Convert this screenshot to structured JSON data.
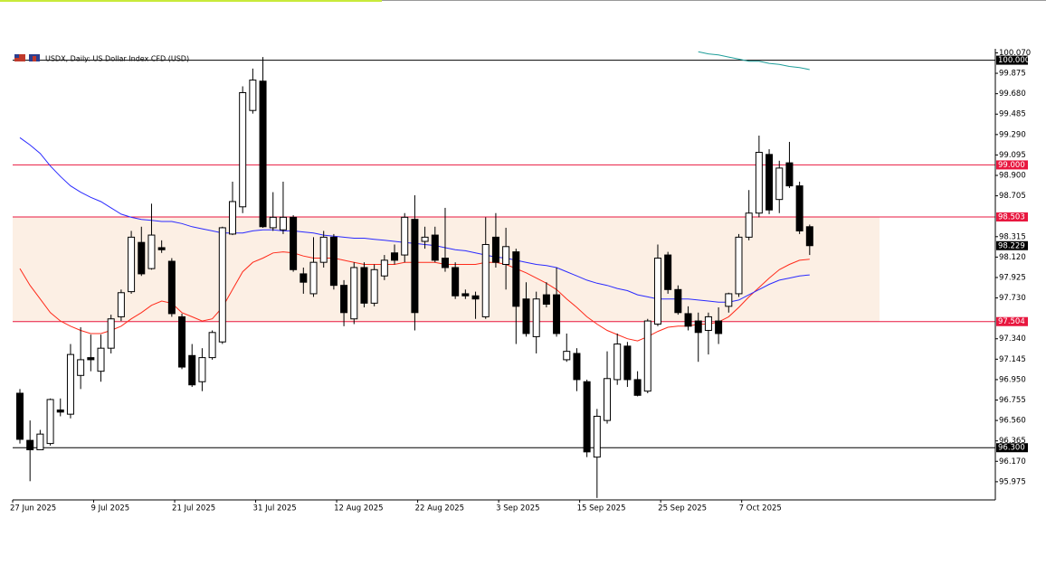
{
  "chart_data": {
    "type": "candlestick",
    "title": "USDX, Daily: US Dollar Index CFD (USD)",
    "categories": [
      "27 Jun 2025",
      null,
      null,
      null,
      null,
      null,
      null,
      null,
      "9 Jul 2025",
      null,
      null,
      null,
      null,
      null,
      null,
      null,
      "21 Jul 2025",
      null,
      null,
      null,
      null,
      null,
      null,
      null,
      "31 Jul 2025",
      null,
      null,
      null,
      null,
      null,
      null,
      null,
      "12 Aug 2025",
      null,
      null,
      null,
      null,
      null,
      null,
      null,
      "22 Aug 2025",
      null,
      null,
      null,
      null,
      null,
      null,
      null,
      "3 Sep 2025",
      null,
      null,
      null,
      null,
      null,
      null,
      null,
      "15 Sep 2025",
      null,
      null,
      null,
      null,
      null,
      null,
      null,
      "25 Sep 2025",
      null,
      null,
      null,
      null,
      null,
      null,
      null,
      "7 Oct 2025",
      null,
      null,
      null,
      null,
      null,
      null
    ],
    "open": [
      96.82,
      96.37,
      96.28,
      96.34,
      96.66,
      96.62,
      96.99,
      97.16,
      97.03,
      97.25,
      97.55,
      97.79,
      98.26,
      98.01,
      98.21,
      98.08,
      97.55,
      97.18,
      96.93,
      97.16,
      97.31,
      98.34,
      98.6,
      99.52,
      99.8,
      98.4,
      98.38,
      98.5,
      97.96,
      97.77,
      98.07,
      98.31,
      97.85,
      97.53,
      98.02,
      97.68,
      97.94,
      98.16,
      98.14,
      98.48,
      98.27,
      98.33,
      98.11,
      98.02,
      97.77,
      97.75,
      97.55,
      98.31,
      98.05,
      98.17,
      97.72,
      97.36,
      97.76,
      97.76,
      97.14,
      97.2,
      96.93,
      96.21,
      96.56,
      96.95,
      97.27,
      96.95,
      96.84,
      97.48,
      98.14,
      97.81,
      97.58,
      97.51,
      97.42,
      97.51,
      97.65,
      97.77,
      98.31,
      98.54,
      99.1,
      98.67,
      99.02,
      98.8,
      98.41
    ],
    "high": [
      96.86,
      96.56,
      96.47,
      96.77,
      96.77,
      97.29,
      97.45,
      97.38,
      97.38,
      97.57,
      97.81,
      98.37,
      98.41,
      98.63,
      98.28,
      98.11,
      97.58,
      97.29,
      97.25,
      97.42,
      98.41,
      98.84,
      99.75,
      99.92,
      100.03,
      98.74,
      98.84,
      98.52,
      98.02,
      98.31,
      98.37,
      98.34,
      97.9,
      98.07,
      98.07,
      98.05,
      98.14,
      98.24,
      98.54,
      98.71,
      98.41,
      98.41,
      98.59,
      98.07,
      97.81,
      97.79,
      98.5,
      98.54,
      98.4,
      98.2,
      97.88,
      97.79,
      97.88,
      98.02,
      97.39,
      97.25,
      96.95,
      96.67,
      97.22,
      97.39,
      97.31,
      97.03,
      97.53,
      98.24,
      98.17,
      97.85,
      97.65,
      97.59,
      97.59,
      97.64,
      97.78,
      98.34,
      98.76,
      99.28,
      99.15,
      99.04,
      99.22,
      98.84,
      98.43
    ],
    "low": [
      96.34,
      95.98,
      96.28,
      96.32,
      96.6,
      96.58,
      96.86,
      97.03,
      96.93,
      97.2,
      97.51,
      97.77,
      97.94,
      98.0,
      98.16,
      97.55,
      97.05,
      96.88,
      96.84,
      97.14,
      97.29,
      98.33,
      98.54,
      99.49,
      98.4,
      98.37,
      98.34,
      97.98,
      97.77,
      97.74,
      98.02,
      97.81,
      97.46,
      97.48,
      97.64,
      97.65,
      97.9,
      98.05,
      98.07,
      97.42,
      98.2,
      98.07,
      97.98,
      97.72,
      97.72,
      97.53,
      97.53,
      98.02,
      97.81,
      97.29,
      97.36,
      97.2,
      97.64,
      97.36,
      97.12,
      96.84,
      96.21,
      95.82,
      96.53,
      96.9,
      96.88,
      96.79,
      96.82,
      97.46,
      97.77,
      97.57,
      97.42,
      97.12,
      97.19,
      97.29,
      97.59,
      97.74,
      98.28,
      98.5,
      98.53,
      98.54,
      98.78,
      98.34,
      98.14
    ],
    "close": [
      96.38,
      96.28,
      96.43,
      96.76,
      96.64,
      97.19,
      97.14,
      97.14,
      97.25,
      97.53,
      97.78,
      98.31,
      97.96,
      98.33,
      98.19,
      97.58,
      97.07,
      96.9,
      97.16,
      97.4,
      98.4,
      98.65,
      99.69,
      99.81,
      98.41,
      98.5,
      98.5,
      98.0,
      97.88,
      98.07,
      98.31,
      97.85,
      97.59,
      98.02,
      97.68,
      98.0,
      98.09,
      98.09,
      98.5,
      97.59,
      98.31,
      98.09,
      98.02,
      97.75,
      97.75,
      97.72,
      98.24,
      98.07,
      98.22,
      97.65,
      97.39,
      97.72,
      97.67,
      97.39,
      97.22,
      96.95,
      96.26,
      96.6,
      96.96,
      97.29,
      96.95,
      96.8,
      97.51,
      98.11,
      97.81,
      97.59,
      97.46,
      97.4,
      97.55,
      97.39,
      97.77,
      98.31,
      98.54,
      99.12,
      98.57,
      98.97,
      98.8,
      98.37,
      98.229
    ],
    "lines": [
      {
        "color": "#ff2a1a",
        "values": [
          98.01,
          97.85,
          97.72,
          97.59,
          97.51,
          97.46,
          97.42,
          97.39,
          97.39,
          97.42,
          97.46,
          97.53,
          97.59,
          97.66,
          97.7,
          97.68,
          97.59,
          97.55,
          97.51,
          97.53,
          97.64,
          97.81,
          97.98,
          98.07,
          98.11,
          98.16,
          98.17,
          98.16,
          98.13,
          98.11,
          98.11,
          98.11,
          98.09,
          98.07,
          98.05,
          98.05,
          98.05,
          98.05,
          98.07,
          98.07,
          98.07,
          98.07,
          98.05,
          98.05,
          98.05,
          98.05,
          98.07,
          98.07,
          98.05,
          98.01,
          97.97,
          97.92,
          97.87,
          97.81,
          97.72,
          97.64,
          97.55,
          97.48,
          97.42,
          97.38,
          97.34,
          97.32,
          97.36,
          97.41,
          97.45,
          97.46,
          97.46,
          97.48,
          97.48,
          97.5,
          97.55,
          97.64,
          97.74,
          97.83,
          97.92,
          98.0,
          98.05,
          98.09,
          98.1
        ]
      },
      {
        "color": "#2a2aff",
        "values": [
          99.26,
          99.19,
          99.11,
          98.99,
          98.89,
          98.8,
          98.74,
          98.69,
          98.65,
          98.59,
          98.53,
          98.5,
          98.48,
          98.47,
          98.46,
          98.46,
          98.44,
          98.41,
          98.39,
          98.37,
          98.35,
          98.35,
          98.35,
          98.37,
          98.38,
          98.38,
          98.37,
          98.37,
          98.36,
          98.35,
          98.33,
          98.32,
          98.31,
          98.3,
          98.3,
          98.29,
          98.28,
          98.27,
          98.26,
          98.25,
          98.24,
          98.23,
          98.21,
          98.19,
          98.18,
          98.16,
          98.14,
          98.12,
          98.11,
          98.09,
          98.07,
          98.05,
          98.04,
          98.02,
          97.98,
          97.94,
          97.9,
          97.87,
          97.85,
          97.82,
          97.8,
          97.76,
          97.74,
          97.72,
          97.72,
          97.72,
          97.72,
          97.71,
          97.7,
          97.69,
          97.69,
          97.71,
          97.76,
          97.81,
          97.86,
          97.9,
          97.92,
          97.94,
          97.95
        ]
      },
      {
        "color": "#1f9e9a",
        "values": [
          null,
          null,
          null,
          null,
          null,
          null,
          null,
          null,
          null,
          null,
          null,
          null,
          null,
          null,
          null,
          null,
          null,
          null,
          null,
          null,
          null,
          null,
          null,
          null,
          null,
          null,
          null,
          null,
          null,
          null,
          null,
          null,
          null,
          null,
          null,
          null,
          null,
          null,
          null,
          null,
          null,
          null,
          null,
          null,
          null,
          null,
          null,
          null,
          null,
          null,
          null,
          null,
          null,
          null,
          null,
          null,
          null,
          null,
          null,
          null,
          null,
          null,
          null,
          null,
          null,
          null,
          null,
          100.08,
          100.06,
          100.05,
          100.03,
          100.01,
          99.99,
          99.99,
          99.97,
          99.96,
          99.94,
          99.93,
          99.91
        ]
      }
    ],
    "levels": [
      {
        "value": 100,
        "label": "100.000",
        "color": "#000000"
      },
      {
        "value": 99,
        "label": "99.000",
        "color": "#e8173f"
      },
      {
        "value": 98.503,
        "label": "98.503",
        "color": "#e8173f"
      },
      {
        "value": 97.504,
        "label": "97.504",
        "color": "#e8173f"
      },
      {
        "value": 96.3,
        "label": "96.300",
        "color": "#000000"
      }
    ],
    "zone": {
      "top": 98.503,
      "bottom": 97.504,
      "color": "#fcefe4"
    },
    "ylim": [
      95.81,
      100.1
    ],
    "yticks": [
      {
        "value": 100.07,
        "label": "100.070"
      },
      99.875,
      {
        "value": 99.68,
        "label": "99.680"
      },
      99.485,
      {
        "value": 99.29,
        "label": "99.290"
      },
      99.095,
      {
        "value": 98.9,
        "label": "98.900"
      },
      98.705,
      98.315,
      {
        "value": 98.12,
        "label": "98.120"
      },
      97.925,
      {
        "value": 97.73,
        "label": "97.730"
      },
      {
        "value": 97.34,
        "label": "97.340"
      },
      97.145,
      {
        "value": 96.95,
        "label": "96.950"
      },
      96.755,
      {
        "value": 96.56,
        "label": "96.560"
      },
      96.365,
      {
        "value": 96.17,
        "label": "96.170"
      },
      95.975
    ]
  }
}
